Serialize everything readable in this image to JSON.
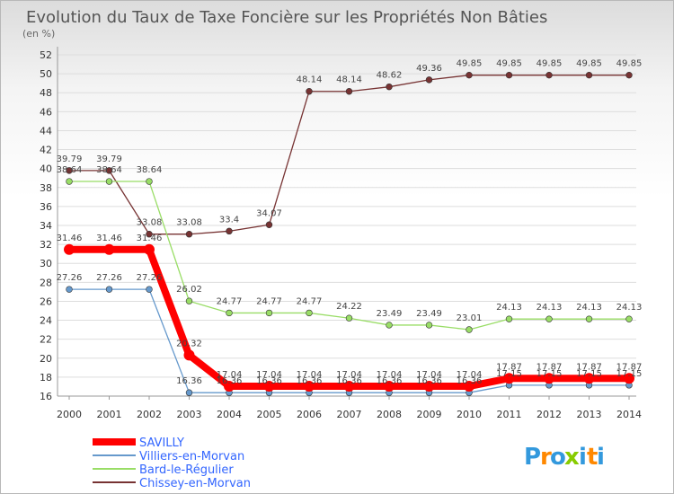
{
  "colors": {
    "SAVILLY": "#ff0000",
    "Villiers-en-Morvan": "#6699cc",
    "Bard-le-Régulier": "#99dd66",
    "Chissey-en-Morvan": "#773333",
    "legend_text": "#3366ff",
    "grid": "#dddddd"
  },
  "logo": {
    "text": "Proxiti",
    "colors": [
      "#3399dd",
      "#ff8800",
      "#3399dd",
      "#88cc00",
      "#3399dd",
      "#ff8800",
      "#3399dd"
    ]
  },
  "chart_data": {
    "type": "line",
    "title": "Evolution du Taux de Taxe Foncière sur les Propriétés Non Bâties",
    "subtitle": "(en %)",
    "xlabel": "",
    "ylabel": "",
    "categories": [
      "2000",
      "2001",
      "2002",
      "2003",
      "2004",
      "2005",
      "2006",
      "2007",
      "2008",
      "2009",
      "2010",
      "2011",
      "2012",
      "2013",
      "2014"
    ],
    "ylim": [
      16,
      52
    ],
    "yticks": [
      16,
      18,
      20,
      22,
      24,
      26,
      28,
      30,
      32,
      34,
      36,
      38,
      40,
      42,
      44,
      46,
      48,
      50,
      52
    ],
    "grid": "horizontal",
    "legend_position": "bottom-left",
    "series": [
      {
        "name": "SAVILLY",
        "labels": [
          "31.46",
          "31.46",
          "31.46",
          "20.32",
          "17.04",
          "17.04",
          "17.04",
          "17.04",
          "17.04",
          "17.04",
          "17.04",
          "17.87",
          "17.87",
          "17.87",
          "17.87"
        ],
        "values": [
          31.46,
          31.46,
          31.46,
          20.32,
          17.04,
          17.04,
          17.04,
          17.04,
          17.04,
          17.04,
          17.04,
          17.87,
          17.87,
          17.87,
          17.87
        ]
      },
      {
        "name": "Villiers-en-Morvan",
        "labels": [
          "27.26",
          "27.26",
          "27.26",
          "16.36",
          "16.36",
          "16.36",
          "16.36",
          "16.36",
          "16.36",
          "16.36",
          "16.36",
          "17.15",
          "17.15",
          "17.15",
          "17.15"
        ],
        "values": [
          27.26,
          27.26,
          27.26,
          16.36,
          16.36,
          16.36,
          16.36,
          16.36,
          16.36,
          16.36,
          16.36,
          17.15,
          17.15,
          17.15,
          17.15
        ]
      },
      {
        "name": "Bard-le-Régulier",
        "labels": [
          "38.64",
          "38.64",
          "38.64",
          "26.02",
          "24.77",
          "24.77",
          "24.77",
          "24.22",
          "23.49",
          "23.49",
          "23.01",
          "24.13",
          "24.13",
          "24.13",
          "24.13"
        ],
        "values": [
          38.64,
          38.64,
          38.64,
          26.02,
          24.77,
          24.77,
          24.77,
          24.22,
          23.49,
          23.49,
          23.01,
          24.13,
          24.13,
          24.13,
          24.13
        ]
      },
      {
        "name": "Chissey-en-Morvan",
        "labels": [
          "39.79",
          "39.79",
          "33.08",
          "33.08",
          "33.4",
          "34.07",
          "48.14",
          "48.14",
          "48.62",
          "49.36",
          "49.85",
          "49.85",
          "49.85",
          "49.85",
          "49.85"
        ],
        "values": [
          39.79,
          39.79,
          33.08,
          33.08,
          33.4,
          34.07,
          48.14,
          48.14,
          48.62,
          49.36,
          49.85,
          49.85,
          49.85,
          49.85,
          49.85
        ]
      }
    ]
  }
}
